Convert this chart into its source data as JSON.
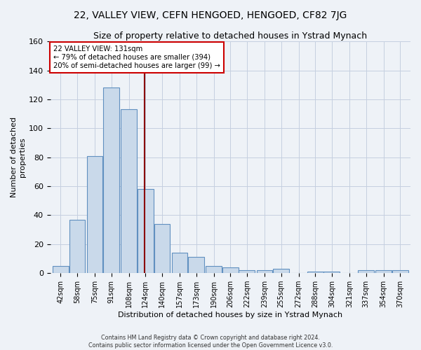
{
  "title": "22, VALLEY VIEW, CEFN HENGOED, HENGOED, CF82 7JG",
  "subtitle": "Size of property relative to detached houses in Ystrad Mynach",
  "xlabel": "Distribution of detached houses by size in Ystrad Mynach",
  "ylabel": "Number of detached\nproperties",
  "annotation_line1": "22 VALLEY VIEW: 131sqm",
  "annotation_line2": "← 79% of detached houses are smaller (394)",
  "annotation_line3": "20% of semi-detached houses are larger (99) →",
  "bar_color": "#c9d9ea",
  "bar_edge_color": "#6090c0",
  "vline_color": "#8b0000",
  "annotation_box_color": "#cc0000",
  "background_color": "#eef2f7",
  "grid_color": "#c5cfe0",
  "bins": [
    42,
    58,
    75,
    91,
    108,
    124,
    140,
    157,
    173,
    190,
    206,
    222,
    239,
    255,
    272,
    288,
    304,
    321,
    337,
    354,
    370
  ],
  "values": [
    5,
    37,
    81,
    128,
    113,
    58,
    34,
    14,
    11,
    5,
    4,
    2,
    2,
    3,
    0,
    1,
    1,
    0,
    2,
    2,
    2
  ],
  "ylim": [
    0,
    160
  ],
  "yticks": [
    0,
    20,
    40,
    60,
    80,
    100,
    120,
    140,
    160
  ],
  "vline_x": 131,
  "title_fontsize": 10,
  "subtitle_fontsize": 9,
  "xlabel_fontsize": 8,
  "ylabel_fontsize": 8,
  "tick_fontsize": 7,
  "footer": "Contains HM Land Registry data © Crown copyright and database right 2024.\nContains public sector information licensed under the Open Government Licence v3.0."
}
